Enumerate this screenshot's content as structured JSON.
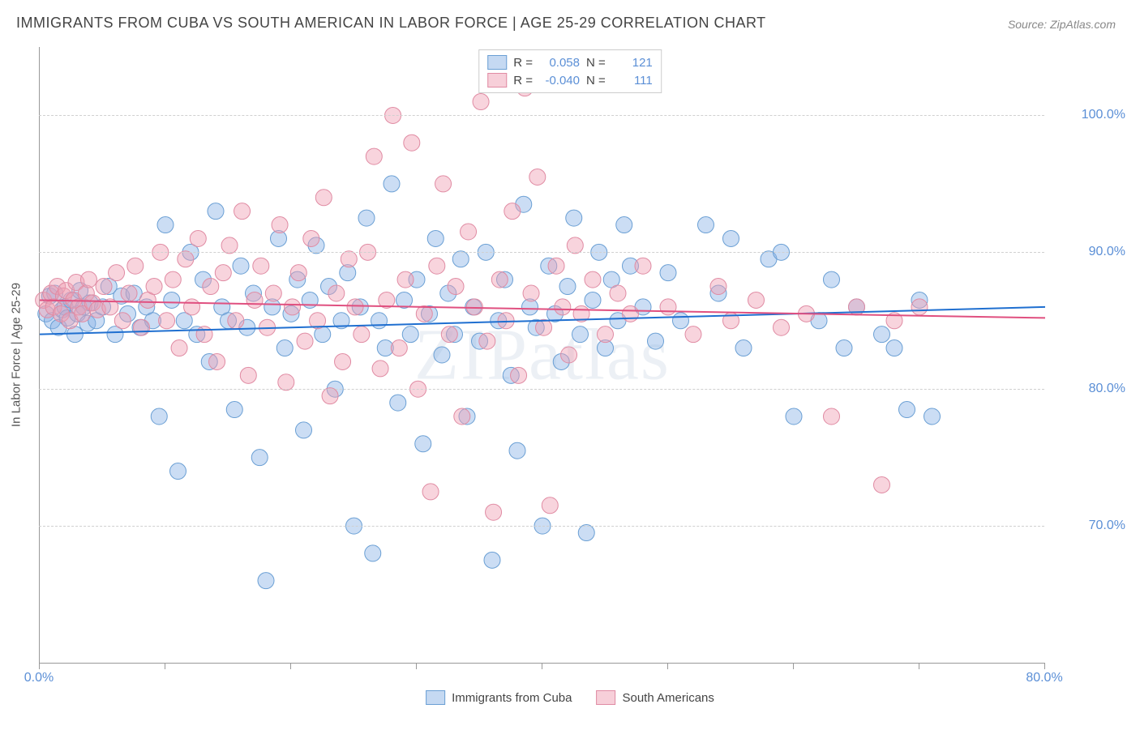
{
  "title": "IMMIGRANTS FROM CUBA VS SOUTH AMERICAN IN LABOR FORCE | AGE 25-29 CORRELATION CHART",
  "source": "Source: ZipAtlas.com",
  "watermark": "ZIPatlas",
  "chart": {
    "type": "scatter",
    "ylabel": "In Labor Force | Age 25-29",
    "xlim": [
      0,
      80
    ],
    "ylim": [
      60,
      105
    ],
    "yticks": [
      70,
      80,
      90,
      100
    ],
    "ytick_labels": [
      "70.0%",
      "80.0%",
      "90.0%",
      "100.0%"
    ],
    "xticks": [
      0,
      10,
      20,
      30,
      40,
      50,
      60,
      70,
      80
    ],
    "xtick_labels": {
      "0": "0.0%",
      "80": "80.0%"
    },
    "marker_radius": 10,
    "background_color": "#ffffff",
    "grid_color": "#d0d0d0",
    "series": [
      {
        "name": "Immigrants from Cuba",
        "color_fill": "rgba(140,180,230,0.45)",
        "color_stroke": "#6a9fd4",
        "trend_color": "#1f6fd0",
        "R": "0.058",
        "N": "121",
        "trend": {
          "x1": 0,
          "y1": 84.0,
          "x2": 80,
          "y2": 86.0
        },
        "points": [
          [
            0.5,
            85.5
          ],
          [
            0.8,
            86.8
          ],
          [
            1.0,
            85.0
          ],
          [
            1.2,
            87.0
          ],
          [
            1.5,
            84.5
          ],
          [
            1.8,
            85.8
          ],
          [
            2.0,
            86.0
          ],
          [
            2.2,
            85.2
          ],
          [
            2.5,
            86.5
          ],
          [
            2.8,
            84.0
          ],
          [
            3.0,
            85.5
          ],
          [
            3.2,
            87.2
          ],
          [
            3.5,
            86.0
          ],
          [
            3.8,
            84.8
          ],
          [
            4.0,
            86.3
          ],
          [
            4.5,
            85.0
          ],
          [
            5.0,
            86.0
          ],
          [
            5.5,
            87.5
          ],
          [
            6.0,
            84.0
          ],
          [
            6.5,
            86.8
          ],
          [
            7.0,
            85.5
          ],
          [
            7.5,
            87.0
          ],
          [
            8.0,
            84.5
          ],
          [
            8.5,
            86.0
          ],
          [
            9.0,
            85.0
          ],
          [
            9.5,
            78.0
          ],
          [
            10.0,
            92.0
          ],
          [
            10.5,
            86.5
          ],
          [
            11.0,
            74.0
          ],
          [
            11.5,
            85.0
          ],
          [
            12.0,
            90.0
          ],
          [
            12.5,
            84.0
          ],
          [
            13.0,
            88.0
          ],
          [
            13.5,
            82.0
          ],
          [
            14.0,
            93.0
          ],
          [
            14.5,
            86.0
          ],
          [
            15.0,
            85.0
          ],
          [
            15.5,
            78.5
          ],
          [
            16.0,
            89.0
          ],
          [
            16.5,
            84.5
          ],
          [
            17.0,
            87.0
          ],
          [
            17.5,
            75.0
          ],
          [
            18.0,
            66.0
          ],
          [
            18.5,
            86.0
          ],
          [
            19.0,
            91.0
          ],
          [
            19.5,
            83.0
          ],
          [
            20.0,
            85.5
          ],
          [
            20.5,
            88.0
          ],
          [
            21.0,
            77.0
          ],
          [
            21.5,
            86.5
          ],
          [
            22.0,
            90.5
          ],
          [
            22.5,
            84.0
          ],
          [
            23.0,
            87.5
          ],
          [
            23.5,
            80.0
          ],
          [
            24.0,
            85.0
          ],
          [
            24.5,
            88.5
          ],
          [
            25.0,
            70.0
          ],
          [
            25.5,
            86.0
          ],
          [
            26.0,
            92.5
          ],
          [
            26.5,
            68.0
          ],
          [
            27.0,
            85.0
          ],
          [
            27.5,
            83.0
          ],
          [
            28.0,
            95.0
          ],
          [
            28.5,
            79.0
          ],
          [
            29.0,
            86.5
          ],
          [
            29.5,
            84.0
          ],
          [
            30.0,
            88.0
          ],
          [
            30.5,
            76.0
          ],
          [
            31.0,
            85.5
          ],
          [
            31.5,
            91.0
          ],
          [
            32.0,
            82.5
          ],
          [
            32.5,
            87.0
          ],
          [
            33.0,
            84.0
          ],
          [
            33.5,
            89.5
          ],
          [
            34.0,
            78.0
          ],
          [
            34.5,
            86.0
          ],
          [
            35.0,
            83.5
          ],
          [
            35.5,
            90.0
          ],
          [
            36.0,
            67.5
          ],
          [
            36.5,
            85.0
          ],
          [
            37.0,
            88.0
          ],
          [
            37.5,
            81.0
          ],
          [
            38.0,
            75.5
          ],
          [
            38.5,
            93.5
          ],
          [
            39.0,
            86.0
          ],
          [
            39.5,
            84.5
          ],
          [
            40.0,
            70.0
          ],
          [
            40.5,
            89.0
          ],
          [
            41.0,
            85.5
          ],
          [
            41.5,
            82.0
          ],
          [
            42.0,
            87.5
          ],
          [
            42.5,
            92.5
          ],
          [
            43.0,
            84.0
          ],
          [
            43.5,
            69.5
          ],
          [
            44.0,
            86.5
          ],
          [
            44.5,
            90.0
          ],
          [
            45.0,
            83.0
          ],
          [
            45.5,
            88.0
          ],
          [
            46.0,
            85.0
          ],
          [
            46.5,
            92.0
          ],
          [
            47.0,
            89.0
          ],
          [
            48.0,
            86.0
          ],
          [
            49.0,
            83.5
          ],
          [
            50.0,
            88.5
          ],
          [
            51.0,
            85.0
          ],
          [
            53.0,
            92.0
          ],
          [
            54.0,
            87.0
          ],
          [
            55.0,
            91.0
          ],
          [
            56.0,
            83.0
          ],
          [
            58.0,
            89.5
          ],
          [
            59.0,
            90.0
          ],
          [
            60.0,
            78.0
          ],
          [
            62.0,
            85.0
          ],
          [
            63.0,
            88.0
          ],
          [
            64.0,
            83.0
          ],
          [
            65.0,
            86.0
          ],
          [
            67.0,
            84.0
          ],
          [
            68.0,
            83.0
          ],
          [
            69.0,
            78.5
          ],
          [
            70.0,
            86.5
          ],
          [
            71.0,
            78.0
          ]
        ]
      },
      {
        "name": "South Americans",
        "color_fill": "rgba(240,160,180,0.45)",
        "color_stroke": "#e08ba3",
        "trend_color": "#e05080",
        "R": "-0.040",
        "N": "111",
        "trend": {
          "x1": 0,
          "y1": 86.5,
          "x2": 80,
          "y2": 85.2
        },
        "points": [
          [
            0.3,
            86.5
          ],
          [
            0.6,
            85.8
          ],
          [
            0.9,
            87.0
          ],
          [
            1.1,
            86.0
          ],
          [
            1.4,
            87.5
          ],
          [
            1.7,
            85.5
          ],
          [
            1.9,
            86.8
          ],
          [
            2.1,
            87.2
          ],
          [
            2.4,
            85.0
          ],
          [
            2.7,
            86.5
          ],
          [
            2.9,
            87.8
          ],
          [
            3.1,
            86.0
          ],
          [
            3.4,
            85.5
          ],
          [
            3.7,
            87.0
          ],
          [
            3.9,
            88.0
          ],
          [
            4.2,
            86.3
          ],
          [
            4.6,
            85.8
          ],
          [
            5.1,
            87.5
          ],
          [
            5.6,
            86.0
          ],
          [
            6.1,
            88.5
          ],
          [
            6.6,
            85.0
          ],
          [
            7.1,
            87.0
          ],
          [
            7.6,
            89.0
          ],
          [
            8.1,
            84.5
          ],
          [
            8.6,
            86.5
          ],
          [
            9.1,
            87.5
          ],
          [
            9.6,
            90.0
          ],
          [
            10.1,
            85.0
          ],
          [
            10.6,
            88.0
          ],
          [
            11.1,
            83.0
          ],
          [
            11.6,
            89.5
          ],
          [
            12.1,
            86.0
          ],
          [
            12.6,
            91.0
          ],
          [
            13.1,
            84.0
          ],
          [
            13.6,
            87.5
          ],
          [
            14.1,
            82.0
          ],
          [
            14.6,
            88.5
          ],
          [
            15.1,
            90.5
          ],
          [
            15.6,
            85.0
          ],
          [
            16.1,
            93.0
          ],
          [
            16.6,
            81.0
          ],
          [
            17.1,
            86.5
          ],
          [
            17.6,
            89.0
          ],
          [
            18.1,
            84.5
          ],
          [
            18.6,
            87.0
          ],
          [
            19.1,
            92.0
          ],
          [
            19.6,
            80.5
          ],
          [
            20.1,
            86.0
          ],
          [
            20.6,
            88.5
          ],
          [
            21.1,
            83.5
          ],
          [
            21.6,
            91.0
          ],
          [
            22.1,
            85.0
          ],
          [
            22.6,
            94.0
          ],
          [
            23.1,
            79.5
          ],
          [
            23.6,
            87.0
          ],
          [
            24.1,
            82.0
          ],
          [
            24.6,
            89.5
          ],
          [
            25.1,
            86.0
          ],
          [
            25.6,
            84.0
          ],
          [
            26.1,
            90.0
          ],
          [
            26.6,
            97.0
          ],
          [
            27.1,
            81.5
          ],
          [
            27.6,
            86.5
          ],
          [
            28.1,
            100.0
          ],
          [
            28.6,
            83.0
          ],
          [
            29.1,
            88.0
          ],
          [
            29.6,
            98.0
          ],
          [
            30.1,
            80.0
          ],
          [
            30.6,
            85.5
          ],
          [
            31.1,
            72.5
          ],
          [
            31.6,
            89.0
          ],
          [
            32.1,
            95.0
          ],
          [
            32.6,
            84.0
          ],
          [
            33.1,
            87.5
          ],
          [
            33.6,
            78.0
          ],
          [
            34.1,
            91.5
          ],
          [
            34.6,
            86.0
          ],
          [
            35.1,
            101.0
          ],
          [
            35.6,
            83.5
          ],
          [
            36.1,
            71.0
          ],
          [
            36.6,
            88.0
          ],
          [
            37.1,
            85.0
          ],
          [
            37.6,
            93.0
          ],
          [
            38.1,
            81.0
          ],
          [
            38.6,
            102.0
          ],
          [
            39.1,
            87.0
          ],
          [
            39.6,
            95.5
          ],
          [
            40.1,
            84.5
          ],
          [
            40.6,
            71.5
          ],
          [
            41.1,
            89.0
          ],
          [
            41.6,
            86.0
          ],
          [
            42.1,
            82.5
          ],
          [
            42.6,
            90.5
          ],
          [
            43.1,
            85.5
          ],
          [
            44.0,
            88.0
          ],
          [
            45.0,
            84.0
          ],
          [
            46.0,
            87.0
          ],
          [
            47.0,
            85.5
          ],
          [
            48.0,
            89.0
          ],
          [
            50.0,
            86.0
          ],
          [
            52.0,
            84.0
          ],
          [
            54.0,
            87.5
          ],
          [
            55.0,
            85.0
          ],
          [
            57.0,
            86.5
          ],
          [
            59.0,
            84.5
          ],
          [
            61.0,
            85.5
          ],
          [
            63.0,
            78.0
          ],
          [
            65.0,
            86.0
          ],
          [
            67.0,
            73.0
          ],
          [
            68.0,
            85.0
          ],
          [
            70.0,
            86.0
          ]
        ]
      }
    ]
  },
  "legend_top": {
    "rows": [
      {
        "swatch_fill": "rgba(140,180,230,0.5)",
        "swatch_border": "#6a9fd4",
        "r_label": "R =",
        "r_val": "0.058",
        "n_label": "N =",
        "n_val": "121"
      },
      {
        "swatch_fill": "rgba(240,160,180,0.5)",
        "swatch_border": "#e08ba3",
        "r_label": "R =",
        "r_val": "-0.040",
        "n_label": "N =",
        "n_val": "111"
      }
    ]
  },
  "legend_bottom": {
    "items": [
      {
        "swatch_fill": "rgba(140,180,230,0.5)",
        "swatch_border": "#6a9fd4",
        "label": "Immigrants from Cuba"
      },
      {
        "swatch_fill": "rgba(240,160,180,0.5)",
        "swatch_border": "#e08ba3",
        "label": "South Americans"
      }
    ]
  }
}
